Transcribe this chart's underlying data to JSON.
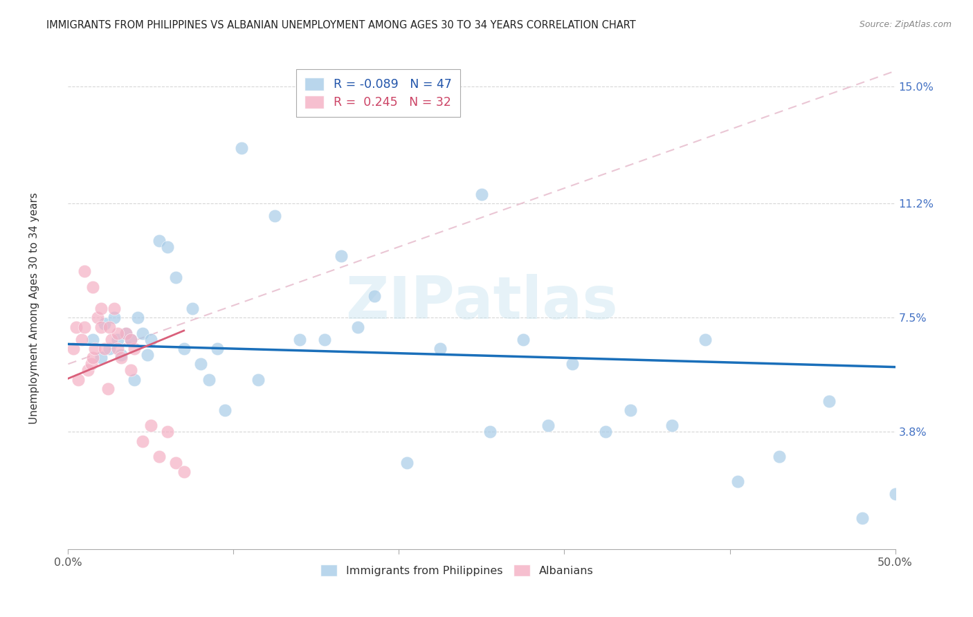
{
  "title": "IMMIGRANTS FROM PHILIPPINES VS ALBANIAN UNEMPLOYMENT AMONG AGES 30 TO 34 YEARS CORRELATION CHART",
  "source": "Source: ZipAtlas.com",
  "ylabel": "Unemployment Among Ages 30 to 34 years",
  "blue_color": "#a8cce8",
  "pink_color": "#f4b0c4",
  "line_blue_color": "#1a6fba",
  "line_pink_color": "#d95f7a",
  "line_dash_color": "#e8c0d0",
  "R_blue": -0.089,
  "N_blue": 47,
  "R_pink": 0.245,
  "N_pink": 32,
  "xlim": [
    0.0,
    0.5
  ],
  "ylim": [
    0.0,
    0.16
  ],
  "ytick_positions": [
    0.038,
    0.075,
    0.112,
    0.15
  ],
  "ytick_labels": [
    "3.8%",
    "7.5%",
    "11.2%",
    "15.0%"
  ],
  "blue_x": [
    0.015,
    0.02,
    0.022,
    0.025,
    0.028,
    0.03,
    0.032,
    0.035,
    0.038,
    0.04,
    0.042,
    0.045,
    0.048,
    0.05,
    0.055,
    0.06,
    0.065,
    0.07,
    0.08,
    0.085,
    0.09,
    0.095,
    0.105,
    0.115,
    0.125,
    0.14,
    0.155,
    0.175,
    0.205,
    0.225,
    0.255,
    0.275,
    0.305,
    0.325,
    0.365,
    0.385,
    0.405,
    0.43,
    0.46,
    0.48,
    0.5,
    0.29,
    0.34,
    0.185,
    0.075,
    0.25,
    0.165
  ],
  "blue_y": [
    0.068,
    0.062,
    0.073,
    0.065,
    0.075,
    0.068,
    0.063,
    0.07,
    0.068,
    0.055,
    0.075,
    0.07,
    0.063,
    0.068,
    0.1,
    0.098,
    0.088,
    0.065,
    0.06,
    0.055,
    0.065,
    0.045,
    0.13,
    0.055,
    0.108,
    0.068,
    0.068,
    0.072,
    0.028,
    0.065,
    0.038,
    0.068,
    0.06,
    0.038,
    0.04,
    0.068,
    0.022,
    0.03,
    0.048,
    0.01,
    0.018,
    0.04,
    0.045,
    0.082,
    0.078,
    0.115,
    0.095
  ],
  "pink_x": [
    0.003,
    0.005,
    0.006,
    0.008,
    0.01,
    0.012,
    0.014,
    0.015,
    0.016,
    0.018,
    0.02,
    0.022,
    0.024,
    0.026,
    0.028,
    0.03,
    0.032,
    0.035,
    0.038,
    0.04,
    0.045,
    0.05,
    0.055,
    0.06,
    0.065,
    0.07,
    0.01,
    0.015,
    0.02,
    0.03,
    0.038,
    0.025
  ],
  "pink_y": [
    0.065,
    0.072,
    0.055,
    0.068,
    0.072,
    0.058,
    0.06,
    0.062,
    0.065,
    0.075,
    0.072,
    0.065,
    0.052,
    0.068,
    0.078,
    0.065,
    0.062,
    0.07,
    0.058,
    0.065,
    0.035,
    0.04,
    0.03,
    0.038,
    0.028,
    0.025,
    0.09,
    0.085,
    0.078,
    0.07,
    0.068,
    0.072
  ]
}
